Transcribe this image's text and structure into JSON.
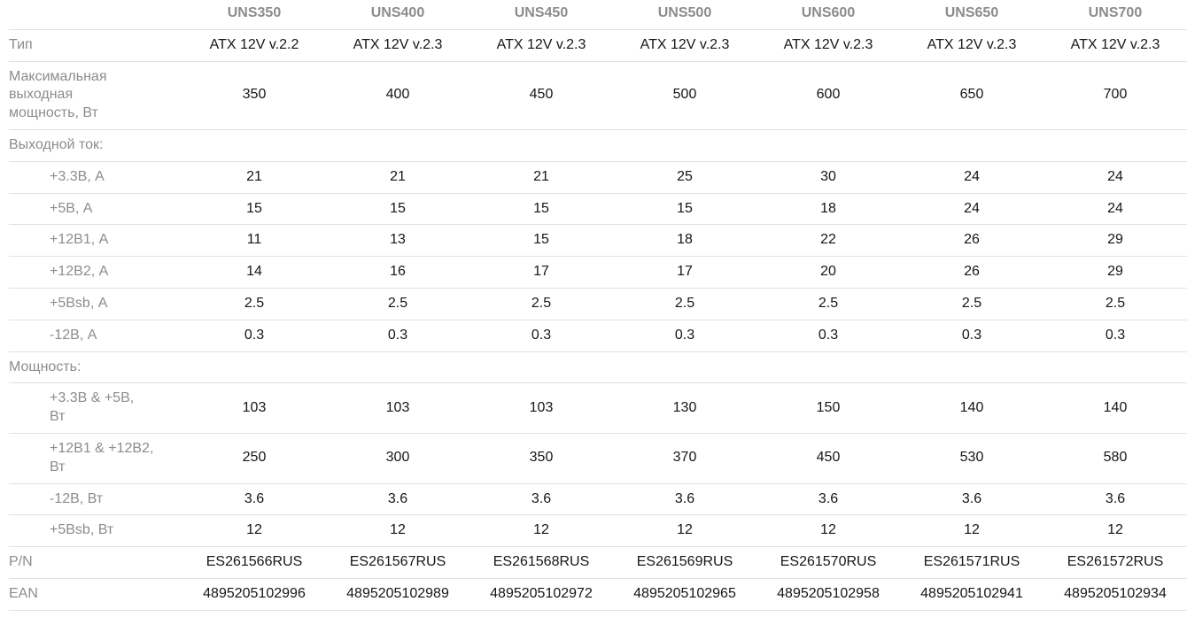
{
  "table": {
    "columns": [
      "UNS350",
      "UNS400",
      "UNS450",
      "UNS500",
      "UNS600",
      "UNS650",
      "UNS700"
    ],
    "corner_label": "",
    "rows": [
      {
        "label": "Тип",
        "values": [
          "ATX 12V v.2.2",
          "ATX 12V v.2.3",
          "ATX 12V v.2.3",
          "ATX 12V v.2.3",
          "ATX 12V v.2.3",
          "ATX 12V v.2.3",
          "ATX 12V v.2.3"
        ]
      },
      {
        "label": [
          "Максимальная",
          "выходная",
          "мощность, Вт"
        ],
        "values": [
          "350",
          "400",
          "450",
          "500",
          "600",
          "650",
          "700"
        ]
      },
      {
        "label": "Выходной ток:",
        "section": true
      },
      {
        "label": "+3.3В, А",
        "indent": true,
        "values": [
          "21",
          "21",
          "21",
          "25",
          "30",
          "24",
          "24"
        ]
      },
      {
        "label": "+5В, А",
        "indent": true,
        "values": [
          "15",
          "15",
          "15",
          "15",
          "18",
          "24",
          "24"
        ]
      },
      {
        "label": "+12В1, А",
        "indent": true,
        "values": [
          "11",
          "13",
          "15",
          "18",
          "22",
          "26",
          "29"
        ]
      },
      {
        "label": "+12В2, А",
        "indent": true,
        "values": [
          "14",
          "16",
          "17",
          "17",
          "20",
          "26",
          "29"
        ]
      },
      {
        "label": "+5Bsb, А",
        "indent": true,
        "values": [
          "2.5",
          "2.5",
          "2.5",
          "2.5",
          "2.5",
          "2.5",
          "2.5"
        ]
      },
      {
        "label": "-12В, А",
        "indent": true,
        "values": [
          "0.3",
          "0.3",
          "0.3",
          "0.3",
          "0.3",
          "0.3",
          "0.3"
        ]
      },
      {
        "label": "Мощность:",
        "section": true
      },
      {
        "label": [
          "+3.3В & +5В,",
          "Вт"
        ],
        "indent": true,
        "values": [
          "103",
          "103",
          "103",
          "130",
          "150",
          "140",
          "140"
        ]
      },
      {
        "label": [
          "+12В1 & +12В2,",
          "Вт"
        ],
        "indent": true,
        "values": [
          "250",
          "300",
          "350",
          "370",
          "450",
          "530",
          "580"
        ]
      },
      {
        "label": "-12В, Вт",
        "indent": true,
        "values": [
          "3.6",
          "3.6",
          "3.6",
          "3.6",
          "3.6",
          "3.6",
          "3.6"
        ]
      },
      {
        "label": "+5Bsb, Вт",
        "indent": true,
        "values": [
          "12",
          "12",
          "12",
          "12",
          "12",
          "12",
          "12"
        ]
      },
      {
        "label": "P/N",
        "values": [
          "ES261566RUS",
          "ES261567RUS",
          "ES261568RUS",
          "ES261569RUS",
          "ES261570RUS",
          "ES261571RUS",
          "ES261572RUS"
        ]
      },
      {
        "label": "EAN",
        "values": [
          "4895205102996",
          "4895205102989",
          "4895205102972",
          "4895205102965",
          "4895205102958",
          "4895205102941",
          "4895205102934"
        ]
      }
    ],
    "colors": {
      "label": "#8c8c8c",
      "value": "#161616",
      "border": "#e1e1e1",
      "background": "#ffffff"
    }
  }
}
